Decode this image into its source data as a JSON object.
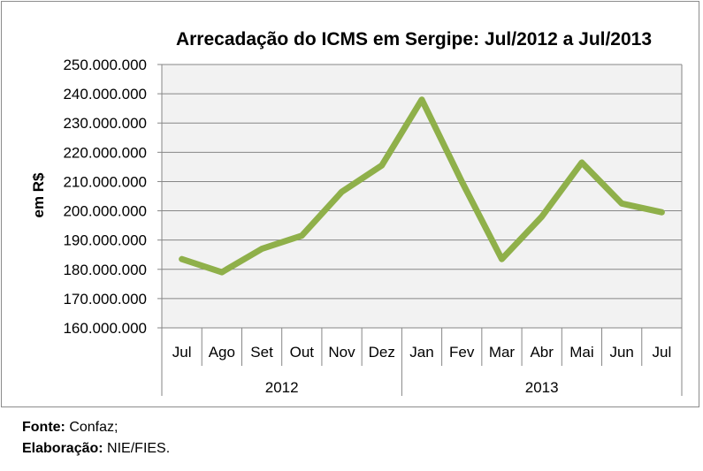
{
  "chart_data": {
    "type": "line",
    "title": "Arrecadação do ICMS em Sergipe: Jul/2012 a Jul/2013",
    "ylabel": "em R$",
    "xlabel": "",
    "ylim": [
      160000000,
      250000000
    ],
    "ytick_step": 10000000,
    "yticks": [
      "160.000.000",
      "170.000.000",
      "180.000.000",
      "190.000.000",
      "200.000.000",
      "210.000.000",
      "220.000.000",
      "230.000.000",
      "240.000.000",
      "250.000.000"
    ],
    "categories": [
      "Jul",
      "Ago",
      "Set",
      "Out",
      "Nov",
      "Dez",
      "Jan",
      "Fev",
      "Mar",
      "Abr",
      "Mai",
      "Jun",
      "Jul"
    ],
    "groups": [
      {
        "label": "2012",
        "start": 0,
        "count": 6
      },
      {
        "label": "2013",
        "start": 6,
        "count": 7
      }
    ],
    "series": [
      {
        "name": "ICMS",
        "color": "#8fb04a",
        "values": [
          183500000,
          179000000,
          187000000,
          191500000,
          206500000,
          215500000,
          238000000,
          210000000,
          183500000,
          198000000,
          216500000,
          202500000,
          199500000
        ]
      }
    ],
    "grid": true,
    "plot_bg": "#f2f2f2"
  },
  "footer": {
    "source_label": "Fonte:",
    "source_value": "Confaz;",
    "credit_label": "Elaboração:",
    "credit_value": "NIE/FIES."
  }
}
